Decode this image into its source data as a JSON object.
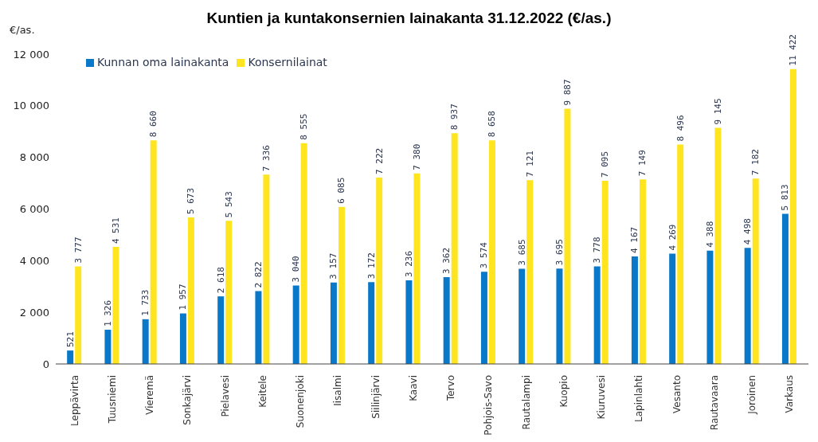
{
  "chart_data": {
    "type": "bar",
    "title": "Kuntien ja kuntakonsernien lainakanta 31.12.2022 (€/as.)",
    "ylabel": "€/as.",
    "categories": [
      "Leppävirta",
      "Tuusniemi",
      "Vieremä",
      "Sonkajärvi",
      "Pielavesi",
      "Keitele",
      "Suonenjoki",
      "Iisalmi",
      "Siilinjärvi",
      "Kaavi",
      "Tervo",
      "Pohjois-Savo",
      "Rautalampi",
      "Kuopio",
      "Kiuruvesi",
      "Lapinlahti",
      "Vesanto",
      "Rautavaara",
      "Joroinen",
      "Varkaus"
    ],
    "series": [
      {
        "name": "Kunnan oma lainakanta",
        "color": "#0a78c8",
        "values": [
          521,
          1326,
          1733,
          1957,
          2618,
          2822,
          3040,
          3157,
          3172,
          3236,
          3362,
          3574,
          3685,
          3695,
          3778,
          4167,
          4269,
          4388,
          4498,
          5813
        ],
        "value_labels": [
          "521",
          "1 326",
          "1 733",
          "1 957",
          "2 618",
          "2 822",
          "3 040",
          "3 157",
          "3 172",
          "3 236",
          "3 362",
          "3 574",
          "3 685",
          "3 695",
          "3 778",
          "4 167",
          "4 269",
          "4 388",
          "4 498",
          "5 813"
        ]
      },
      {
        "name": "Konsernilainat",
        "color": "#ffe51f",
        "values": [
          3777,
          4531,
          8660,
          5673,
          5543,
          7336,
          8555,
          6085,
          7222,
          7380,
          8937,
          8658,
          7121,
          9887,
          7095,
          7149,
          8496,
          9145,
          7182,
          11422
        ],
        "value_labels": [
          "3 777",
          "4 531",
          "8 660",
          "5 673",
          "5 543",
          "7 336",
          "8 555",
          "6 085",
          "7 222",
          "7 380",
          "8 937",
          "8 658",
          "7 121",
          "9 887",
          "7 095",
          "7 149",
          "8 496",
          "9 145",
          "7 182",
          "11 422"
        ]
      }
    ],
    "ylim": [
      0,
      12000
    ],
    "yticks": [
      0,
      {
        "value": 2000,
        "label": "2 000"
      },
      {
        "value": 4000,
        "label": "4 000"
      },
      {
        "value": 6000,
        "label": "6 000"
      },
      {
        "value": 8000,
        "label": "8 000"
      },
      {
        "value": 10000,
        "label": "10 000"
      },
      {
        "value": 12000,
        "label": "12 000"
      }
    ],
    "legend": "top left"
  }
}
